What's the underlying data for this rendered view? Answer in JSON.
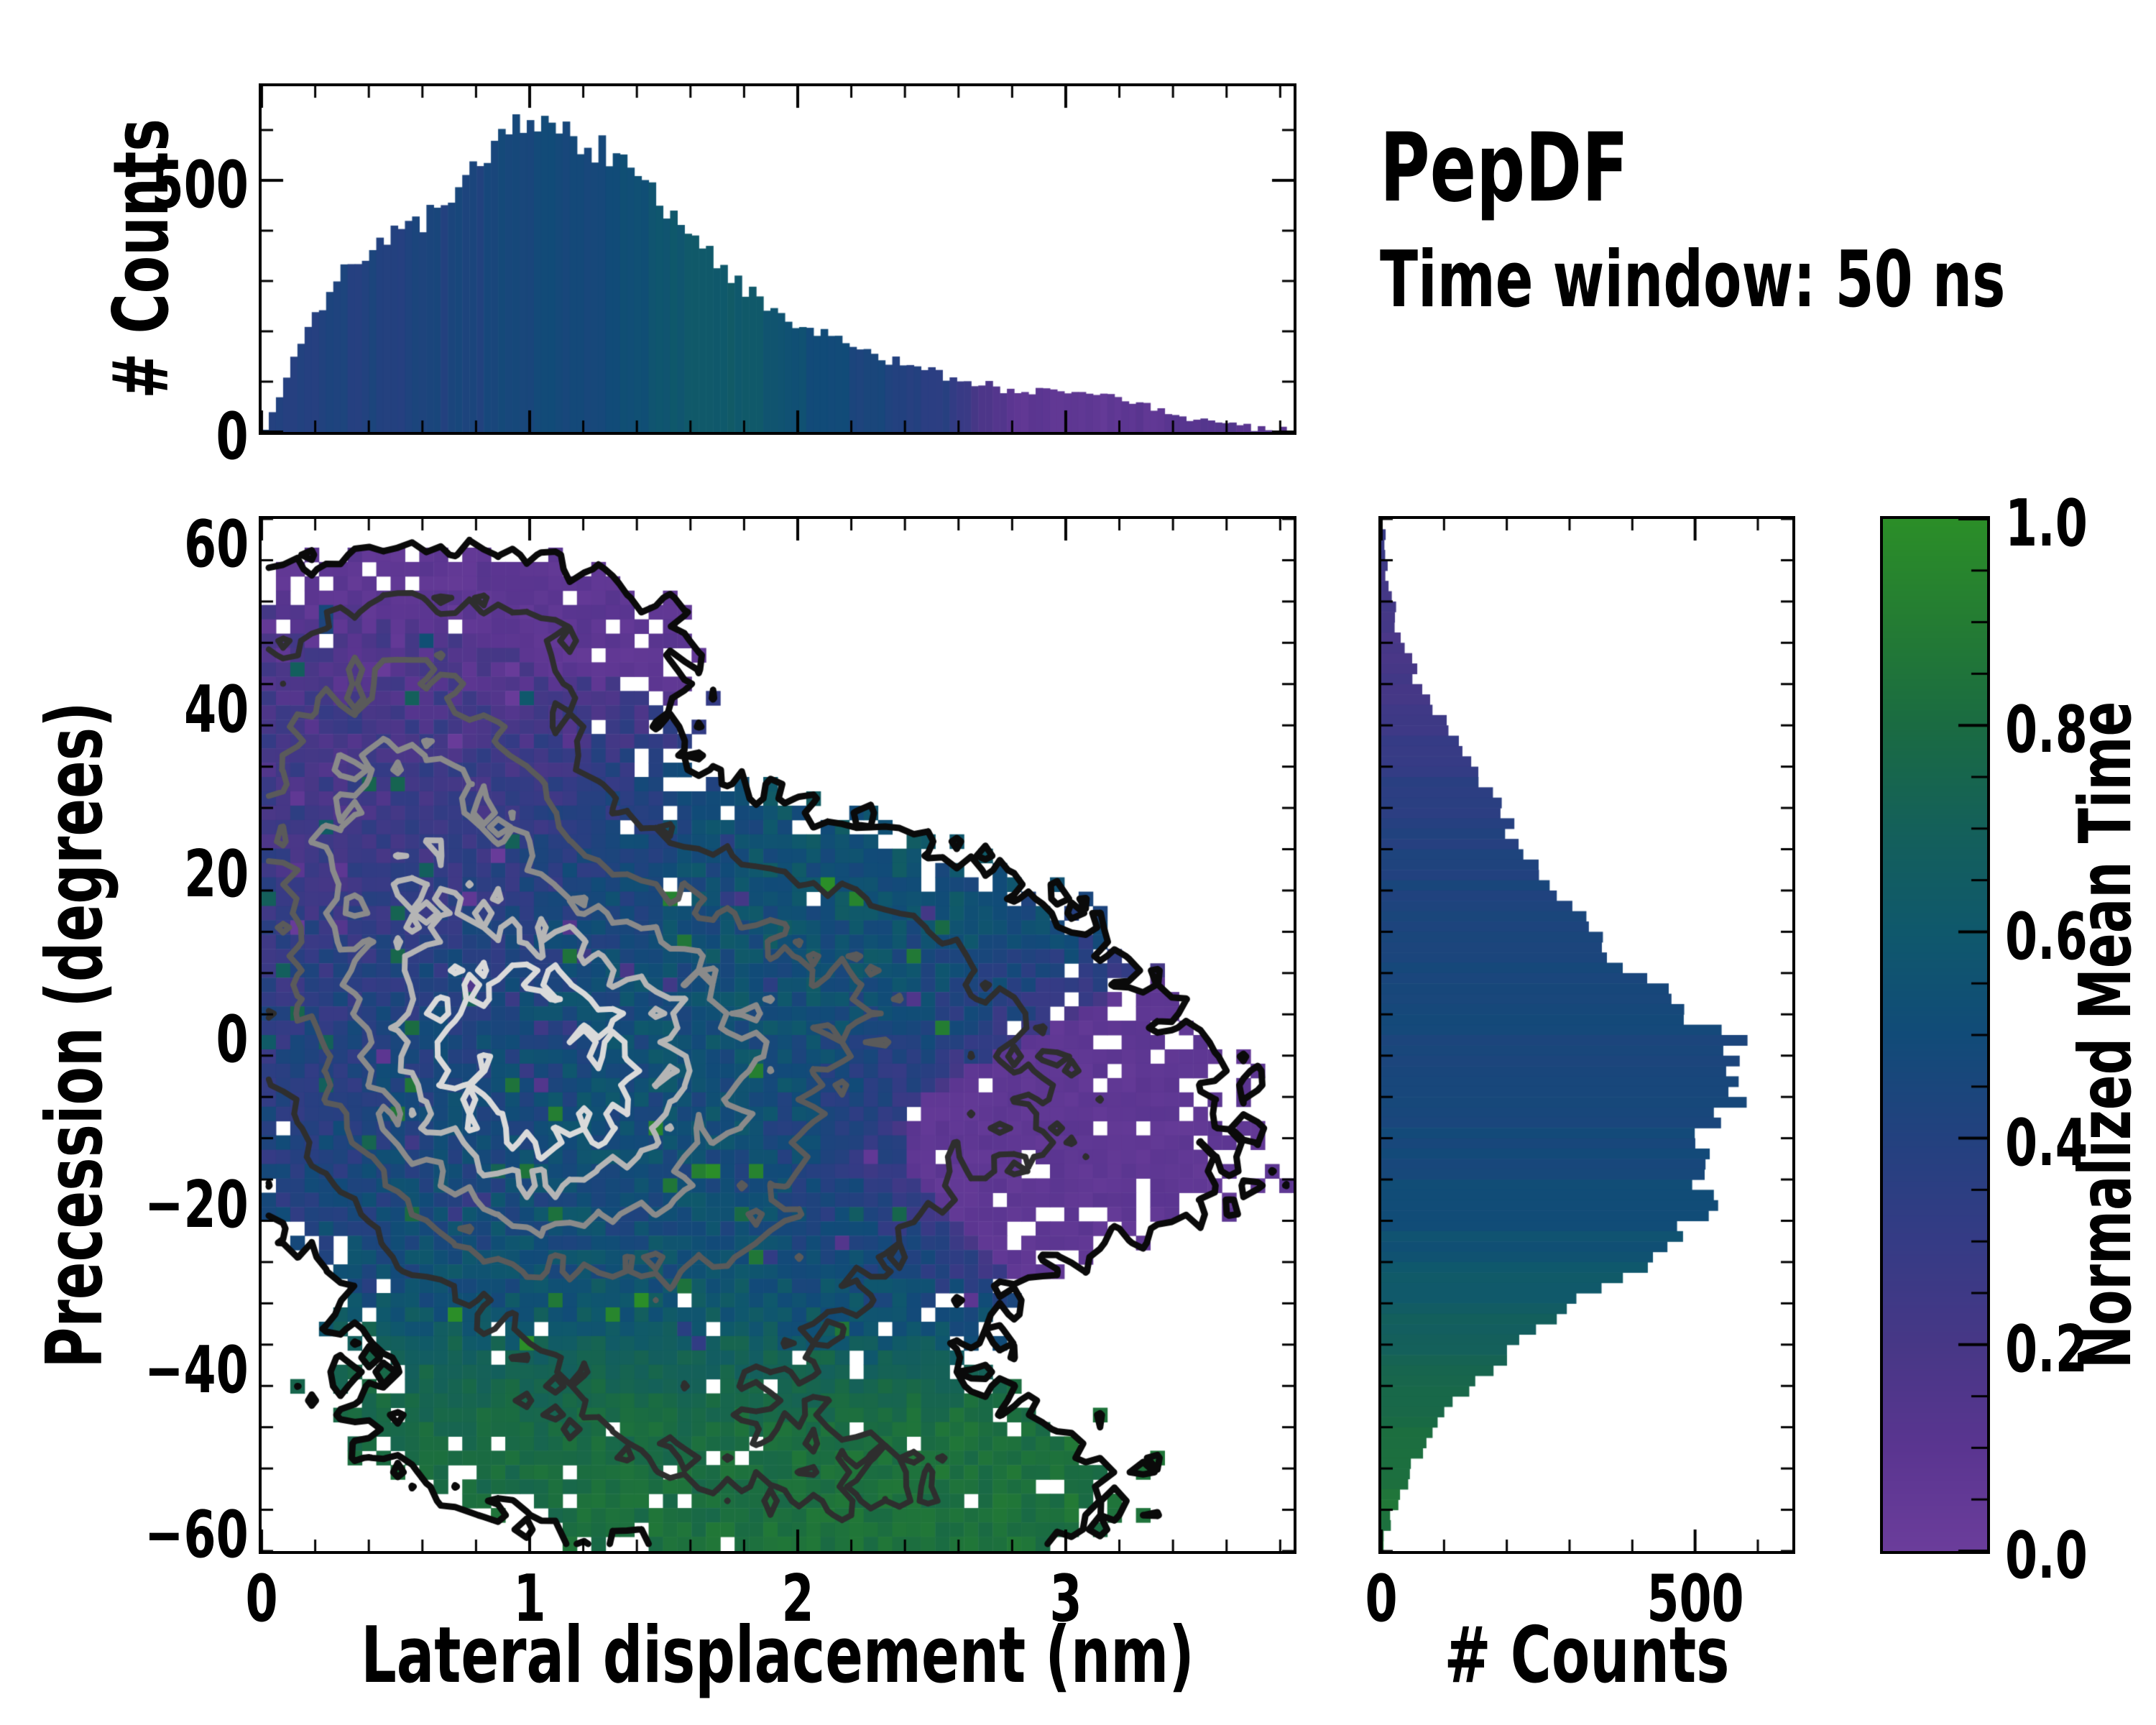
{
  "title": "PepDF",
  "subtitle": "Time window: 50 ns",
  "colorbar": {
    "label": "Normalized Mean Time",
    "tick_values": [
      0.0,
      0.2,
      0.4,
      0.6,
      0.8,
      1.0
    ],
    "tick_labels": [
      "0.0",
      "0.2",
      "0.4",
      "0.6",
      "0.8",
      "1.0"
    ],
    "minor_step": 0.05,
    "stops": [
      [
        0.0,
        "#6b3d9b"
      ],
      [
        0.1,
        "#5a3590"
      ],
      [
        0.2,
        "#473786"
      ],
      [
        0.3,
        "#353b85"
      ],
      [
        0.4,
        "#23417f"
      ],
      [
        0.5,
        "#114b78"
      ],
      [
        0.6,
        "#0f586c"
      ],
      [
        0.7,
        "#14605a"
      ],
      [
        0.8,
        "#1a6b42"
      ],
      [
        0.9,
        "#247c33"
      ],
      [
        1.0,
        "#2b8e28"
      ]
    ]
  },
  "chart_data": [
    {
      "id": "top_histogram",
      "type": "bar",
      "ylabel": "# Counts",
      "xlim": [
        0,
        3.85
      ],
      "ylim": [
        0,
        687
      ],
      "ytick_values": [
        0,
        500
      ],
      "ytick_labels": [
        "0",
        "500"
      ],
      "y_minor_step": 100,
      "n_bins": 144,
      "seed": 7,
      "envelope_x": [
        0.0,
        0.03,
        0.08,
        0.15,
        0.22,
        0.3,
        0.4,
        0.5,
        0.6,
        0.7,
        0.8,
        0.9,
        1.0,
        1.1,
        1.2,
        1.3,
        1.4,
        1.5,
        1.6,
        1.7,
        1.8,
        1.9,
        2.0,
        2.1,
        2.2,
        2.35,
        2.5,
        2.65,
        2.8,
        2.95,
        3.1,
        3.25,
        3.4,
        3.55,
        3.7,
        3.85
      ],
      "envelope_counts": [
        0,
        25,
        90,
        185,
        250,
        310,
        360,
        395,
        415,
        450,
        535,
        595,
        620,
        600,
        575,
        550,
        510,
        445,
        390,
        335,
        285,
        240,
        210,
        190,
        170,
        145,
        120,
        100,
        78,
        80,
        78,
        60,
        35,
        18,
        8,
        3
      ],
      "value_x": [
        0,
        0.6,
        1.0,
        1.3,
        1.55,
        1.75,
        1.95,
        2.15,
        2.35,
        2.55,
        2.7,
        2.85,
        3.1,
        3.3,
        3.55,
        3.85
      ],
      "value_v": [
        0.4,
        0.42,
        0.46,
        0.5,
        0.58,
        0.62,
        0.55,
        0.48,
        0.42,
        0.35,
        0.18,
        0.08,
        0.06,
        0.08,
        0.12,
        0.12
      ]
    },
    {
      "id": "joint_heatmap",
      "type": "heatmap",
      "xlabel": "Lateral displacement (nm)",
      "ylabel": "Precession (degrees)",
      "xlim": [
        0,
        3.85
      ],
      "ylim": [
        -62.5,
        62.5
      ],
      "xtick_values": [
        0,
        1,
        2,
        3
      ],
      "xtick_labels": [
        "0",
        "1",
        "2",
        "3"
      ],
      "x_minor_step": 0.2,
      "ytick_values": [
        60,
        40,
        20,
        0,
        -20,
        -40,
        -60
      ],
      "ytick_labels": [
        "60",
        "40",
        "20",
        "0",
        "−20",
        "−40",
        "−60"
      ],
      "y_minor_step": 5,
      "grid_nx": 72,
      "grid_ny": 72,
      "seed": 12345,
      "blobs": [
        {
          "a": 1.0,
          "x": 1.02,
          "sx": 0.4,
          "y": -7,
          "sy": 13,
          "v": 0.5
        },
        {
          "a": 0.6,
          "x": 0.65,
          "sx": 0.45,
          "y": 10,
          "sy": 16,
          "v": 0.33
        },
        {
          "a": 0.5,
          "x": 0.45,
          "sx": 0.4,
          "y": 30,
          "sy": 11,
          "v": 0.2
        },
        {
          "a": 0.2,
          "x": 0.75,
          "sx": 0.55,
          "y": 48,
          "sy": 6.5,
          "v": 0.07
        },
        {
          "a": 0.45,
          "x": 1.55,
          "sx": 0.48,
          "y": -2,
          "sy": 15,
          "v": 0.58
        },
        {
          "a": 0.22,
          "x": 2.25,
          "sx": 0.52,
          "y": 7,
          "sy": 10,
          "v": 0.55
        },
        {
          "a": 0.2,
          "x": 2.8,
          "sx": 0.6,
          "y": -11,
          "sy": 10.5,
          "v": 0.06
        },
        {
          "a": 0.2,
          "x": 1.4,
          "sx": 0.7,
          "y": -45,
          "sy": 9.5,
          "v": 0.8
        },
        {
          "a": 0.18,
          "x": 2.35,
          "sx": 0.6,
          "y": -55,
          "sy": 7,
          "v": 0.84
        },
        {
          "a": 0.22,
          "x": 1.9,
          "sx": 0.45,
          "y": -27,
          "sy": 8,
          "v": 0.5
        }
      ],
      "occupancy_threshold": 0.07,
      "contour_levels": [
        0.07,
        0.22,
        0.42,
        0.66,
        0.95,
        1.24
      ],
      "contour_colors": [
        "#0a0a0a",
        "#2e2e2e",
        "#5a5a5a",
        "#8a8a8a",
        "#b5b5b5",
        "#dadada"
      ]
    },
    {
      "id": "right_histogram",
      "type": "barh",
      "xlabel": "# Counts",
      "xlim": [
        0,
        655
      ],
      "ylim": [
        -62.5,
        62.5
      ],
      "xtick_values": [
        0,
        500
      ],
      "xtick_labels": [
        "0",
        "500"
      ],
      "x_minor_step": 100,
      "n_bins": 100,
      "seed": 11,
      "envelope_y": [
        62,
        60,
        57,
        54,
        51,
        48,
        45,
        42,
        40,
        38,
        36,
        34,
        32,
        30,
        28,
        26,
        24,
        22,
        20,
        18,
        16,
        14,
        12,
        10,
        8,
        6,
        4,
        2,
        0,
        -2,
        -4,
        -6,
        -8,
        -10,
        -12,
        -14,
        -16,
        -18,
        -20,
        -22,
        -24,
        -26,
        -28,
        -30,
        -32,
        -34,
        -36,
        -38,
        -40,
        -42,
        -44,
        -46,
        -48,
        -50,
        -52,
        -54,
        -56,
        -58,
        -60,
        -62
      ],
      "envelope_counts": [
        0,
        4,
        8,
        14,
        22,
        32,
        48,
        64,
        80,
        98,
        118,
        135,
        150,
        163,
        183,
        203,
        214,
        222,
        243,
        263,
        288,
        318,
        345,
        368,
        398,
        432,
        468,
        512,
        542,
        568,
        583,
        570,
        554,
        540,
        526,
        514,
        500,
        509,
        523,
        508,
        478,
        444,
        408,
        369,
        328,
        288,
        248,
        213,
        180,
        150,
        124,
        100,
        80,
        64,
        50,
        38,
        28,
        18,
        10,
        4
      ],
      "value_y": [
        62,
        55,
        48,
        42,
        36,
        30,
        24,
        18,
        10,
        0,
        -8,
        -16,
        -22,
        -28,
        -34,
        -40,
        -46,
        -52,
        -58,
        -62
      ],
      "value_v": [
        0.3,
        0.22,
        0.2,
        0.22,
        0.28,
        0.35,
        0.4,
        0.43,
        0.45,
        0.46,
        0.47,
        0.48,
        0.52,
        0.58,
        0.66,
        0.74,
        0.8,
        0.84,
        0.85,
        0.85
      ]
    }
  ]
}
